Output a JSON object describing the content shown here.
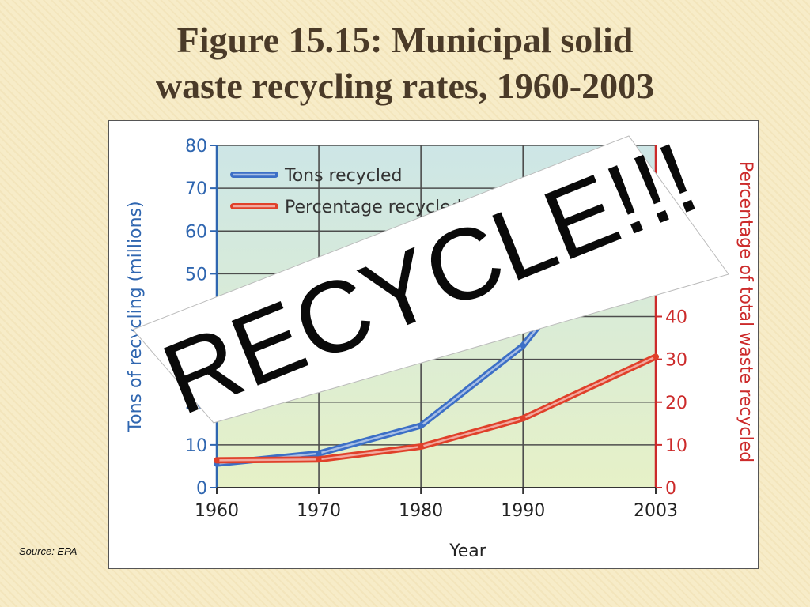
{
  "slide": {
    "title_line1": "Figure 15.15: Municipal solid",
    "title_line2": "waste recycling rates, 1960-2003",
    "source": "Source: EPA",
    "stamp": "RECYCLE!!!"
  },
  "colors": {
    "tons": "#3c6fc6",
    "percent": "#e0402a",
    "left_axis": "#2f66b0",
    "right_axis": "#cc2a2a",
    "bg_top": "#cde6e6",
    "bg_bottom": "#e6f1c7"
  },
  "chart_data": {
    "type": "line",
    "x": [
      1960,
      1970,
      1980,
      1990,
      2003
    ],
    "xticks": [
      "1960",
      "1970",
      "1980",
      "1990",
      "2003"
    ],
    "xlabel": "Year",
    "ylabel_left": "Tons of recycling (millions)",
    "ylabel_right": "Percentage of total waste recycled",
    "ylim_left": [
      0,
      80
    ],
    "ylim_right": [
      0,
      80
    ],
    "yticks_left": [
      "0",
      "10",
      "20",
      "30",
      "40",
      "50",
      "60",
      "70",
      "80"
    ],
    "yticks_right": [
      "0",
      "10",
      "20",
      "30",
      "40",
      "50"
    ],
    "grid": true,
    "legend_position": "top-left",
    "series": [
      {
        "name": "Tons recycled",
        "axis": "left",
        "values": [
          5.6,
          8.0,
          14.5,
          33.2,
          72.3
        ]
      },
      {
        "name": "Percentage recycled",
        "axis": "right",
        "values": [
          6.4,
          6.6,
          9.6,
          16.2,
          30.6
        ]
      }
    ]
  }
}
